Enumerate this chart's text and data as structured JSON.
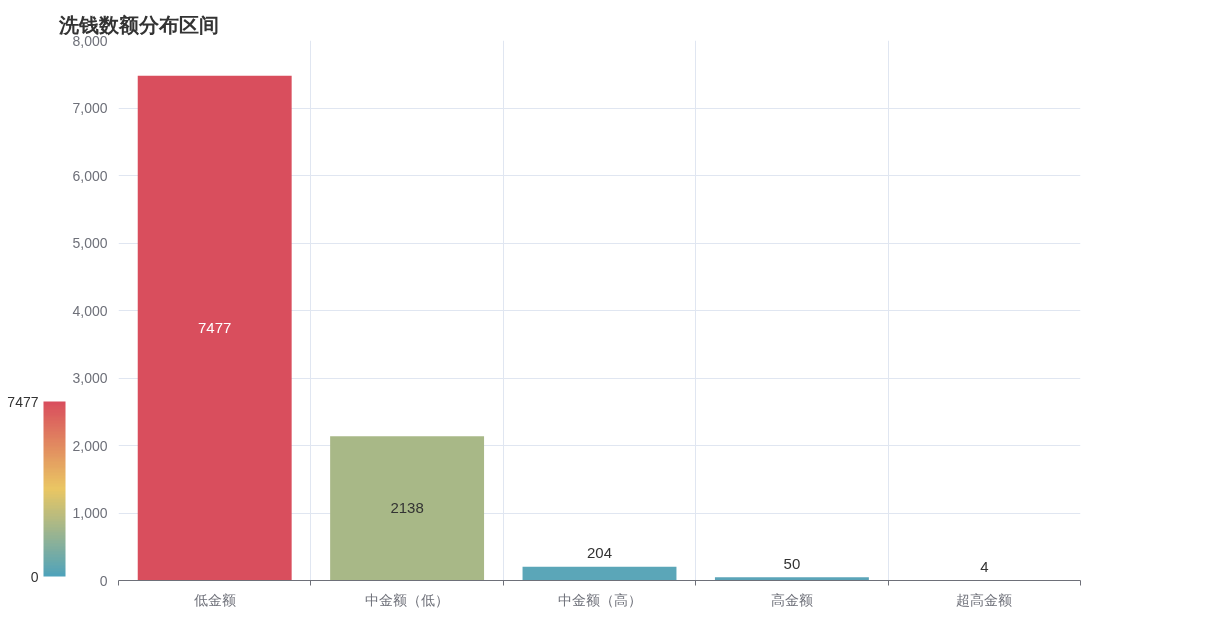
{
  "chart_data": {
    "type": "bar",
    "title": "洗钱数额分布区间",
    "categories": [
      "低金额",
      "中金额（低）",
      "中金额（高）",
      "高金额",
      "超高金额"
    ],
    "values": [
      7477,
      2138,
      204,
      50,
      4
    ],
    "colors": [
      "#d94e5d",
      "#a8b887",
      "#5ba6b8",
      "#5ba4b8",
      "#50a3ba"
    ],
    "ylim": [
      0,
      8000
    ],
    "yticks": [
      0,
      {
        "value": 1000,
        "label": "1,000"
      },
      {
        "value": 2000,
        "label": "2,000"
      },
      {
        "value": 3000,
        "label": "3,000"
      },
      {
        "value": 4000,
        "label": "4,000"
      },
      {
        "value": 5000,
        "label": "5,000"
      },
      {
        "value": 6000,
        "label": "6,000"
      },
      {
        "value": 7000,
        "label": "7,000"
      },
      {
        "value": 8000,
        "label": "8,000"
      }
    ],
    "clim": [
      0,
      7477
    ],
    "cticks": [
      0,
      7477
    ],
    "grid": true,
    "data_labels": true
  }
}
